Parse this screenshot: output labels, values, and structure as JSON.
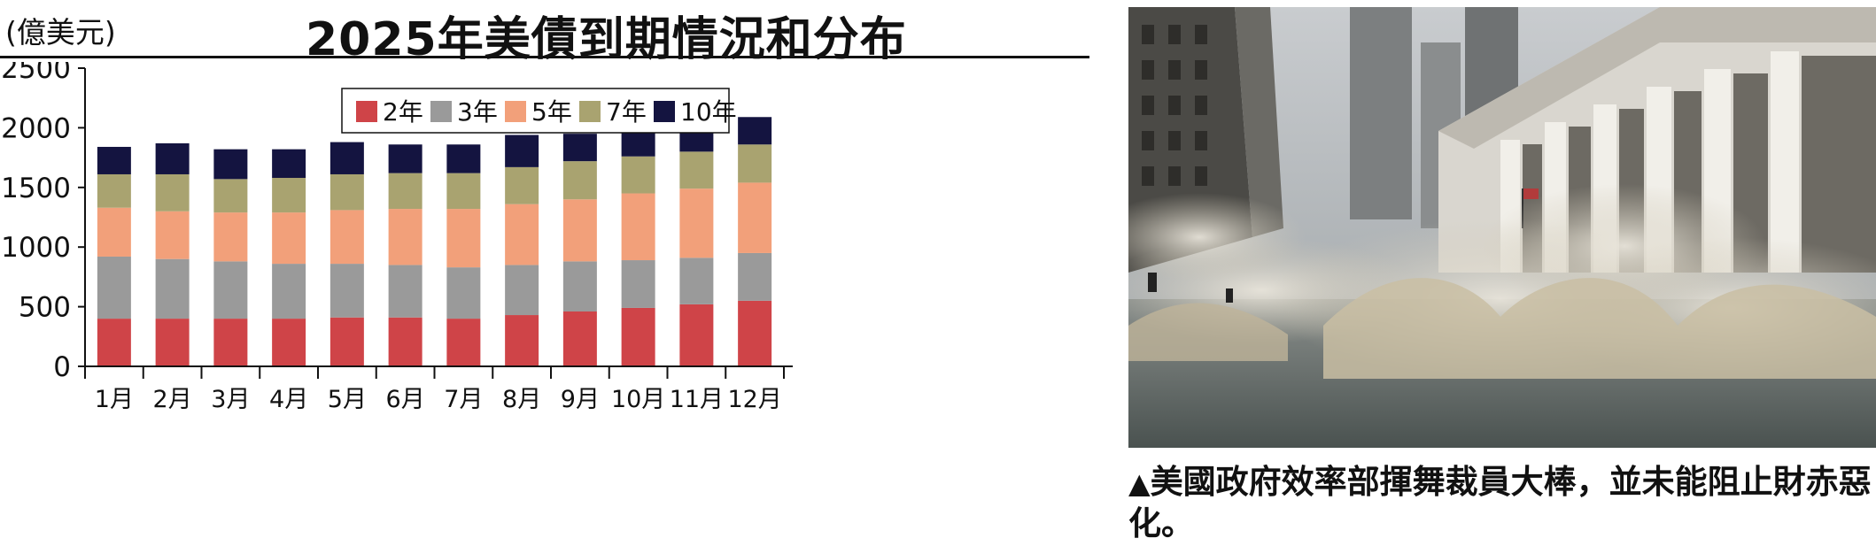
{
  "header": {
    "unit": "(億美元)",
    "title": "2025年美債到期情況和分布"
  },
  "chart_data": {
    "type": "bar",
    "stacked": true,
    "title": "2025年美債到期情況和分布",
    "ylabel": "(億美元)",
    "ylim": [
      0,
      2500
    ],
    "yticks": [
      0,
      500,
      1000,
      1500,
      2000,
      2500
    ],
    "grid": false,
    "legend_position": "top-center",
    "categories": [
      "1月",
      "2月",
      "3月",
      "4月",
      "5月",
      "6月",
      "7月",
      "8月",
      "9月",
      "10月",
      "11月",
      "12月"
    ],
    "series": [
      {
        "name": "2年",
        "color": "#cf4448",
        "values": [
          400,
          400,
          400,
          400,
          410,
          410,
          400,
          430,
          460,
          490,
          520,
          550
        ]
      },
      {
        "name": "3年",
        "color": "#9a9a9a",
        "values": [
          520,
          500,
          480,
          460,
          450,
          440,
          430,
          420,
          420,
          400,
          390,
          400
        ]
      },
      {
        "name": "5年",
        "color": "#f2a07a",
        "values": [
          410,
          400,
          410,
          430,
          450,
          470,
          490,
          510,
          520,
          560,
          580,
          590
        ]
      },
      {
        "name": "7年",
        "color": "#a9a370",
        "values": [
          280,
          310,
          280,
          290,
          300,
          300,
          300,
          310,
          320,
          310,
          310,
          320
        ]
      },
      {
        "name": "10年",
        "color": "#141440",
        "values": [
          230,
          260,
          250,
          240,
          270,
          240,
          240,
          270,
          230,
          230,
          270,
          230
        ]
      }
    ]
  },
  "photo": {
    "description_icon": "flooded-wall-street-photo"
  },
  "caption": {
    "marker": "▲",
    "text": "美國政府效率部揮舞裁員大棒，並未能阻止財赤惡化。"
  }
}
